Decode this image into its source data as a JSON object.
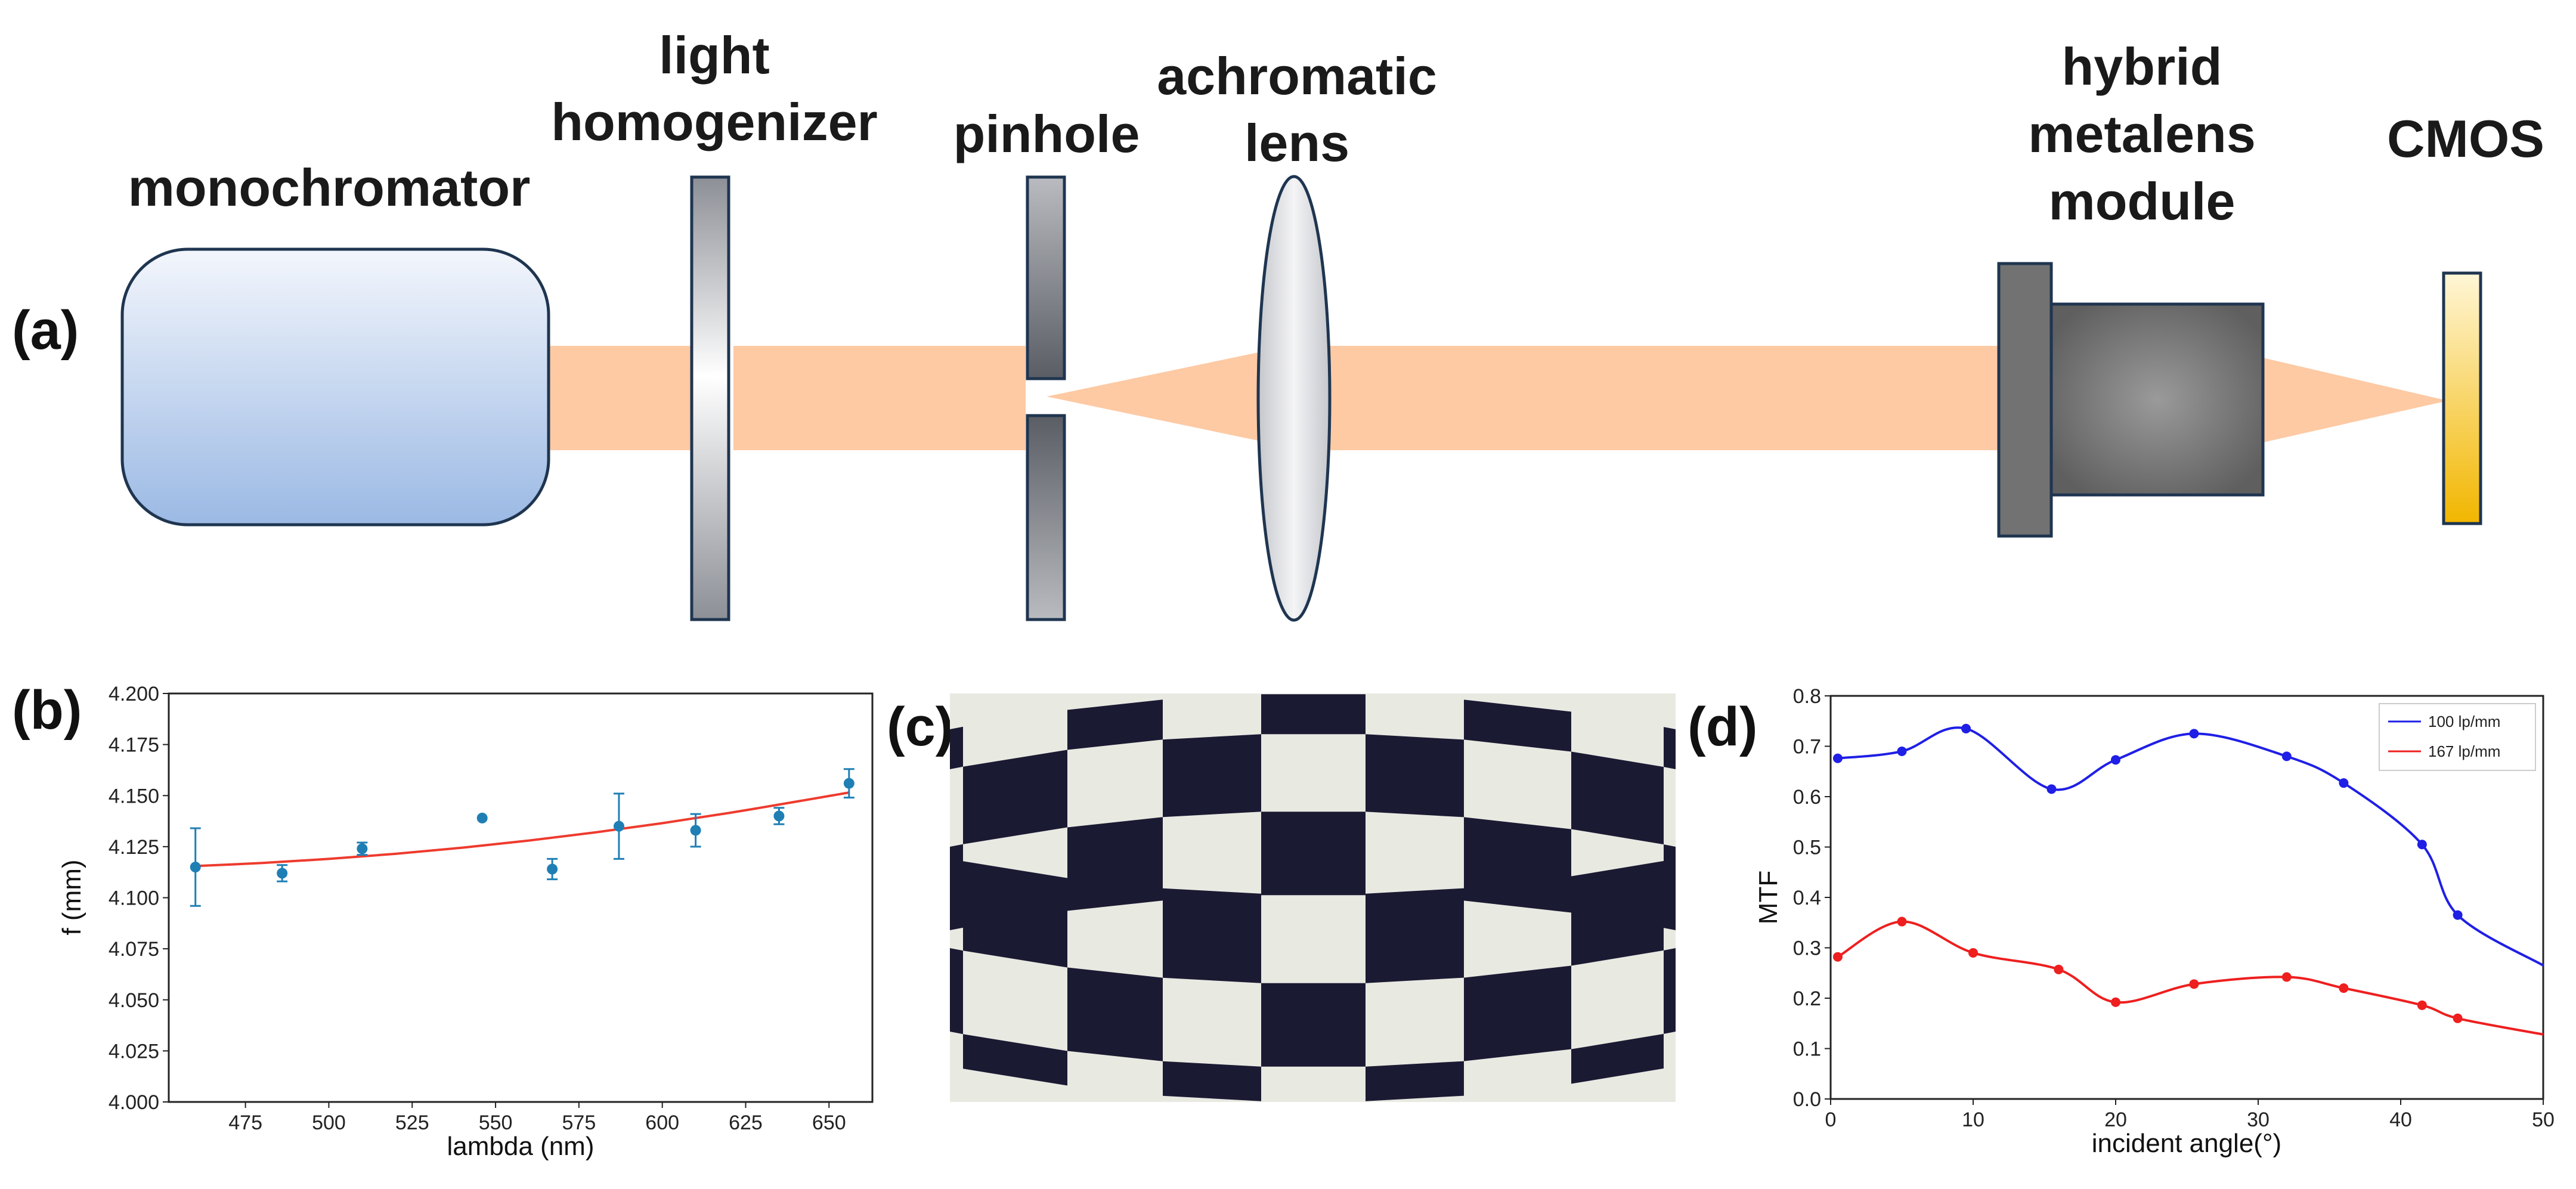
{
  "figure": {
    "panel_labels": {
      "a": "(a)",
      "b": "(b)",
      "c": "(c)",
      "d": "(d)"
    },
    "setup": {
      "components": {
        "monochromator": "monochromator",
        "light_homogenizer": [
          "light",
          "homogenizer"
        ],
        "pinhole": "pinhole",
        "achromatic_lens": [
          "achromatic",
          "lens"
        ],
        "hybrid_metalens_module": [
          "hybrid",
          "metalens",
          "module"
        ],
        "cmos": "CMOS"
      },
      "colors": {
        "beam": "#fdcaa4",
        "monochromator_top": "#eef3fb",
        "monochromator_bottom": "#9dbbe6",
        "outline": "#1f3550",
        "cmos_top": "#fff5cc",
        "cmos_bottom": "#f5b800"
      }
    },
    "checkerboard": {
      "description_free": true,
      "colors": {
        "dark": "#1b1a33",
        "light": "#e8e9e1"
      }
    }
  },
  "chart_data": [
    {
      "type": "scatter",
      "xlabel": "lambda (nm)",
      "ylabel": "f (mm)",
      "xlim": [
        452,
        663
      ],
      "ylim": [
        4.0,
        4.2
      ],
      "xticks": [
        475,
        500,
        525,
        550,
        575,
        600,
        625,
        650
      ],
      "yticks": [
        "4.000",
        "4.025",
        "4.050",
        "4.075",
        "4.100",
        "4.125",
        "4.150",
        "4.175",
        "4.200"
      ],
      "grid": false,
      "series": [
        {
          "kind": "points_with_errorbars",
          "color": "#1f7fb4",
          "x": [
            460,
            486,
            510,
            546,
            567,
            587,
            610,
            635,
            656
          ],
          "y": [
            4.115,
            4.112,
            4.124,
            4.139,
            4.114,
            4.135,
            4.133,
            4.14,
            4.156
          ],
          "err": [
            0.019,
            0.004,
            0.003,
            0.0,
            0.005,
            0.016,
            0.008,
            0.004,
            0.007
          ]
        },
        {
          "kind": "fit_curve",
          "color": "#ee3b2e",
          "x": [
            460,
            480,
            500,
            520,
            540,
            560,
            580,
            600,
            620,
            640,
            656
          ],
          "y": [
            4.1155,
            4.117,
            4.119,
            4.1215,
            4.1245,
            4.128,
            4.132,
            4.1365,
            4.1415,
            4.147,
            4.1515
          ]
        }
      ]
    },
    {
      "type": "line",
      "xlabel": "incident angle(°)",
      "ylabel": "MTF",
      "xlim": [
        0,
        50
      ],
      "ylim": [
        0,
        0.8
      ],
      "xticks": [
        0,
        10,
        20,
        30,
        40,
        50
      ],
      "yticks": [
        "0.0",
        "0.1",
        "0.2",
        "0.3",
        "0.4",
        "0.5",
        "0.6",
        "0.7",
        "0.8"
      ],
      "grid": false,
      "legend": "top-right",
      "series": [
        {
          "name": "100 lp/mm",
          "color": "#1f1fe6",
          "x": [
            0.5,
            5,
            9.5,
            15.5,
            20,
            25.5,
            32,
            36,
            41.5,
            44,
            50
          ],
          "y": [
            0.676,
            0.69,
            0.735,
            0.615,
            0.673,
            0.725,
            0.68,
            0.627,
            0.505,
            0.365,
            0.265
          ],
          "markers": [
            0.5,
            5,
            9.5,
            15.5,
            20,
            25.5,
            32,
            36,
            41.5,
            44
          ]
        },
        {
          "name": "167 lp/mm",
          "color": "#ee1f1f",
          "x": [
            0.5,
            5,
            10,
            16,
            20,
            25.5,
            32,
            36,
            41.5,
            44,
            50
          ],
          "y": [
            0.282,
            0.352,
            0.29,
            0.257,
            0.192,
            0.228,
            0.242,
            0.22,
            0.186,
            0.16,
            0.128
          ],
          "markers": [
            0.5,
            5,
            10,
            16,
            20,
            25.5,
            32,
            36,
            41.5,
            44
          ]
        }
      ]
    }
  ]
}
